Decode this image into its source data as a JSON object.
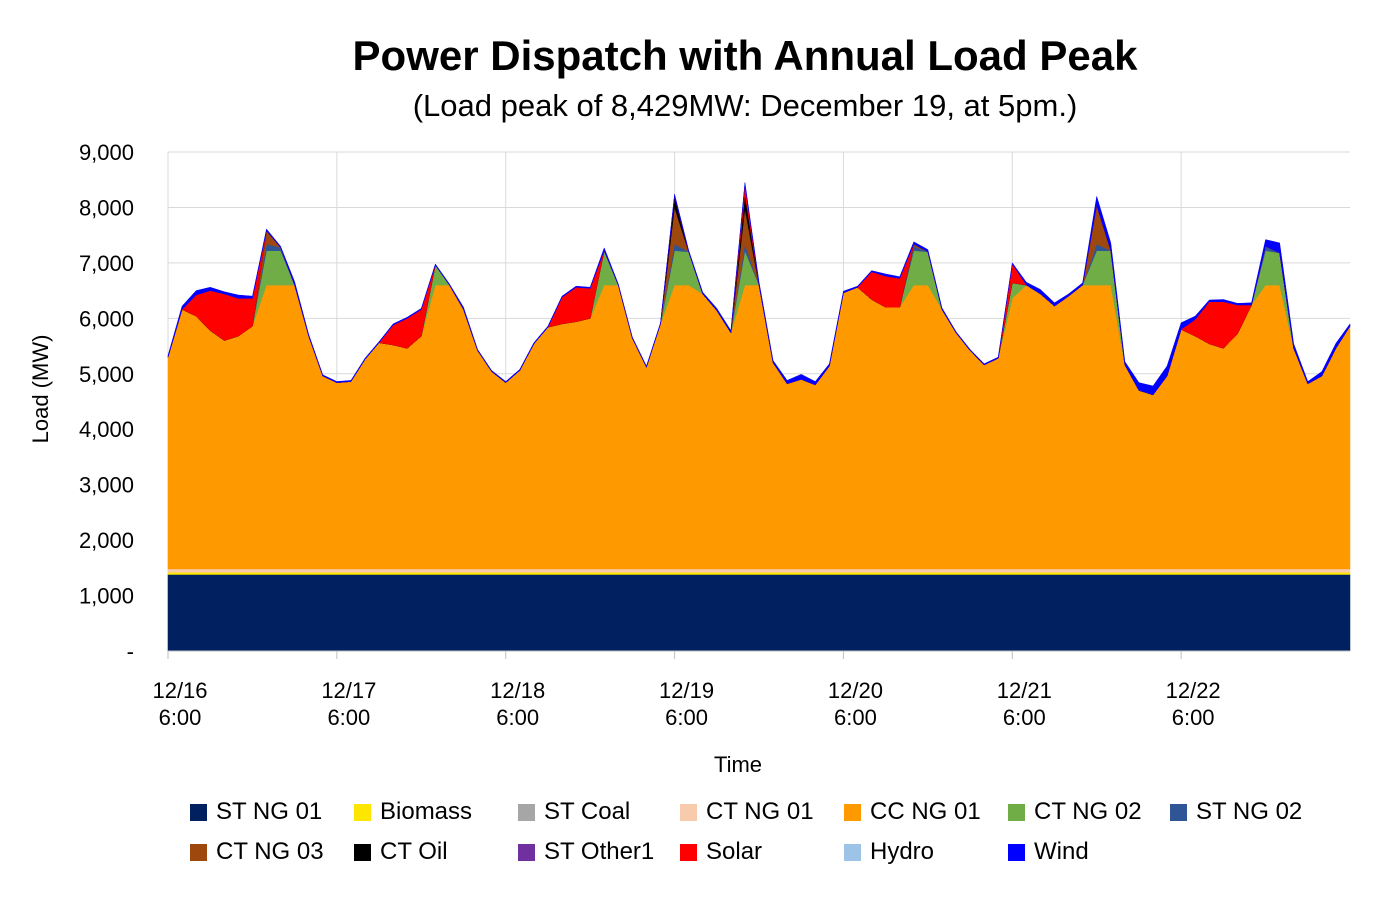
{
  "chart_data": {
    "type": "area",
    "stacked": true,
    "title": "Power Dispatch with Annual Load Peak",
    "subtitle": "(Load peak of 8,429MW: December 19, at 5pm.)",
    "xlabel": "Time",
    "ylabel": "Load (MW)",
    "ylim": [
      0,
      9000
    ],
    "yticks": [
      {
        "value": 0,
        "label": "-"
      },
      {
        "value": 1000,
        "label": "1,000"
      },
      {
        "value": 2000,
        "label": "2,000"
      },
      {
        "value": 3000,
        "label": "3,000"
      },
      {
        "value": 4000,
        "label": "4,000"
      },
      {
        "value": 5000,
        "label": "5,000"
      },
      {
        "value": 6000,
        "label": "6,000"
      },
      {
        "value": 7000,
        "label": "7,000"
      },
      {
        "value": 8000,
        "label": "8,000"
      },
      {
        "value": 9000,
        "label": "9,000"
      }
    ],
    "xtick_labels": [
      {
        "date": "12/16",
        "time": "6:00"
      },
      {
        "date": "12/17",
        "time": "6:00"
      },
      {
        "date": "12/18",
        "time": "6:00"
      },
      {
        "date": "12/19",
        "time": "6:00"
      },
      {
        "date": "12/20",
        "time": "6:00"
      },
      {
        "date": "12/21",
        "time": "6:00"
      },
      {
        "date": "12/22",
        "time": "6:00"
      }
    ],
    "x_hours_from_start": [
      0,
      2,
      4,
      6,
      8,
      10,
      12,
      14,
      16,
      18,
      20,
      22,
      24,
      26,
      28,
      30,
      32,
      34,
      36,
      38,
      40,
      42,
      44,
      46,
      48,
      50,
      52,
      54,
      56,
      58,
      60,
      62,
      64,
      66,
      68,
      70,
      72,
      74,
      76,
      78,
      80,
      82,
      84,
      86,
      88,
      90,
      92,
      94,
      96,
      98,
      100,
      102,
      104,
      106,
      108,
      110,
      112,
      114,
      116,
      118,
      120,
      122,
      124,
      126,
      128,
      130,
      132,
      134,
      136,
      138,
      140,
      142,
      144,
      146,
      148,
      150,
      152,
      154,
      156,
      158,
      160,
      162,
      164,
      166,
      168
    ],
    "grid": true,
    "legend_position": "bottom",
    "series": [
      {
        "name": "ST NG 01",
        "color": "#002060",
        "values": [
          1380,
          1380,
          1380,
          1380,
          1380,
          1380,
          1380,
          1380,
          1380,
          1380,
          1380,
          1380,
          1380,
          1380,
          1380,
          1380,
          1380,
          1380,
          1380,
          1380,
          1380,
          1380,
          1380,
          1380,
          1380,
          1380,
          1380,
          1380,
          1380,
          1380,
          1380,
          1380,
          1380,
          1380,
          1380,
          1380,
          1380,
          1380,
          1380,
          1380,
          1380,
          1380,
          1380,
          1380,
          1380,
          1380,
          1380,
          1380,
          1380,
          1380,
          1380,
          1380,
          1380,
          1380,
          1380,
          1380,
          1380,
          1380,
          1380,
          1380,
          1380,
          1380,
          1380,
          1380,
          1380,
          1380,
          1380,
          1380,
          1380,
          1380,
          1380,
          1380,
          1380,
          1380,
          1380,
          1380,
          1380,
          1380,
          1380,
          1380,
          1380,
          1380,
          1380,
          1380,
          1380
        ]
      },
      {
        "name": "Biomass",
        "color": "#FFE600",
        "values": [
          40,
          40,
          40,
          40,
          40,
          40,
          40,
          40,
          40,
          40,
          40,
          40,
          40,
          40,
          40,
          40,
          40,
          40,
          40,
          40,
          40,
          40,
          40,
          40,
          40,
          40,
          40,
          40,
          40,
          40,
          40,
          40,
          40,
          40,
          40,
          40,
          40,
          40,
          40,
          40,
          40,
          40,
          40,
          40,
          40,
          40,
          40,
          40,
          40,
          40,
          40,
          40,
          40,
          40,
          40,
          40,
          40,
          40,
          40,
          40,
          40,
          40,
          40,
          40,
          40,
          40,
          40,
          40,
          40,
          40,
          40,
          40,
          40,
          40,
          40,
          40,
          40,
          40,
          40,
          40,
          40,
          40,
          40,
          40,
          40
        ]
      },
      {
        "name": "ST Coal",
        "color": "#A6A6A6",
        "values": [
          0,
          0,
          0,
          0,
          0,
          0,
          0,
          0,
          0,
          0,
          0,
          0,
          0,
          0,
          0,
          0,
          0,
          0,
          0,
          0,
          0,
          0,
          0,
          0,
          0,
          0,
          0,
          0,
          0,
          0,
          0,
          0,
          0,
          0,
          0,
          0,
          0,
          0,
          0,
          0,
          0,
          0,
          0,
          0,
          0,
          0,
          0,
          0,
          0,
          0,
          0,
          0,
          0,
          0,
          0,
          0,
          0,
          0,
          0,
          0,
          0,
          0,
          0,
          0,
          0,
          0,
          0,
          0,
          0,
          0,
          0,
          0,
          0,
          0,
          0,
          0,
          0,
          0,
          0,
          0,
          0,
          0,
          0,
          0,
          0
        ]
      },
      {
        "name": "CT NG 01",
        "color": "#F8CBAD",
        "values": [
          60,
          60,
          60,
          60,
          60,
          60,
          60,
          60,
          60,
          60,
          60,
          60,
          60,
          60,
          60,
          60,
          60,
          60,
          60,
          60,
          60,
          60,
          60,
          60,
          60,
          60,
          60,
          60,
          60,
          60,
          60,
          60,
          60,
          60,
          60,
          60,
          60,
          60,
          60,
          60,
          60,
          60,
          60,
          60,
          60,
          60,
          60,
          60,
          60,
          60,
          60,
          60,
          60,
          60,
          60,
          60,
          60,
          60,
          60,
          60,
          60,
          60,
          60,
          60,
          60,
          60,
          60,
          60,
          60,
          60,
          60,
          60,
          60,
          60,
          60,
          60,
          60,
          60,
          60,
          60,
          60,
          60,
          60,
          60,
          60
        ]
      },
      {
        "name": "CC NG 01",
        "color": "#FF9900",
        "values": [
          3820,
          4680,
          4560,
          4300,
          4120,
          4200,
          4380,
          5120,
          5120,
          5120,
          4200,
          3480,
          3360,
          3380,
          3780,
          4080,
          4040,
          3980,
          4200,
          5120,
          5120,
          4680,
          3940,
          3560,
          3360,
          3580,
          4060,
          4360,
          4420,
          4460,
          4520,
          5120,
          5120,
          4160,
          3640,
          4420,
          5120,
          5120,
          4960,
          4660,
          4260,
          5120,
          5120,
          3720,
          3340,
          3420,
          3320,
          3660,
          4980,
          5080,
          4860,
          4720,
          4720,
          5120,
          5120,
          4680,
          4260,
          3940,
          3680,
          3800,
          4880,
          5120,
          4960,
          4740,
          4920,
          5120,
          5120,
          5120,
          3680,
          3220,
          3140,
          3480,
          4320,
          4200,
          4060,
          3980,
          4240,
          4760,
          5120,
          5120,
          3980,
          3340,
          3480,
          3980,
          4380
        ]
      },
      {
        "name": "CT NG 02",
        "color": "#70AD47",
        "values": [
          0,
          0,
          0,
          0,
          0,
          0,
          0,
          620,
          620,
          0,
          0,
          0,
          0,
          0,
          0,
          0,
          0,
          0,
          0,
          360,
          0,
          0,
          0,
          0,
          0,
          0,
          0,
          0,
          0,
          0,
          0,
          620,
          0,
          0,
          0,
          0,
          620,
          600,
          0,
          0,
          0,
          620,
          0,
          0,
          0,
          0,
          0,
          0,
          0,
          0,
          0,
          0,
          0,
          620,
          600,
          0,
          0,
          0,
          0,
          0,
          280,
          0,
          0,
          0,
          0,
          0,
          620,
          620,
          0,
          0,
          0,
          0,
          0,
          0,
          0,
          0,
          0,
          0,
          620,
          580,
          0,
          0,
          0,
          0,
          0
        ]
      },
      {
        "name": "ST NG 02",
        "color": "#2F5597",
        "values": [
          0,
          0,
          0,
          0,
          0,
          0,
          0,
          120,
          60,
          0,
          0,
          0,
          0,
          0,
          0,
          0,
          0,
          0,
          0,
          0,
          0,
          0,
          0,
          0,
          0,
          0,
          0,
          0,
          0,
          0,
          0,
          0,
          0,
          0,
          0,
          0,
          120,
          0,
          0,
          0,
          0,
          120,
          0,
          0,
          0,
          0,
          0,
          0,
          0,
          0,
          0,
          0,
          0,
          80,
          0,
          0,
          0,
          0,
          0,
          0,
          0,
          0,
          0,
          0,
          0,
          0,
          120,
          0,
          0,
          0,
          0,
          0,
          0,
          0,
          0,
          0,
          0,
          0,
          80,
          0,
          0,
          0,
          0,
          0,
          0
        ]
      },
      {
        "name": "CT NG 03",
        "color": "#9E480E",
        "values": [
          0,
          0,
          0,
          0,
          0,
          0,
          0,
          240,
          0,
          0,
          0,
          0,
          0,
          0,
          0,
          0,
          0,
          0,
          0,
          0,
          0,
          0,
          0,
          0,
          0,
          0,
          0,
          0,
          0,
          0,
          0,
          0,
          0,
          0,
          0,
          0,
          660,
          0,
          0,
          0,
          0,
          640,
          0,
          0,
          0,
          0,
          0,
          0,
          0,
          0,
          0,
          0,
          0,
          40,
          0,
          0,
          0,
          0,
          0,
          0,
          0,
          0,
          0,
          0,
          0,
          0,
          700,
          0,
          0,
          0,
          0,
          0,
          0,
          0,
          0,
          0,
          0,
          0,
          0,
          0,
          0,
          0,
          0,
          0,
          0
        ]
      },
      {
        "name": "CT Oil",
        "color": "#000000",
        "values": [
          0,
          0,
          0,
          0,
          0,
          0,
          0,
          0,
          0,
          0,
          0,
          0,
          0,
          0,
          0,
          0,
          0,
          0,
          0,
          0,
          0,
          0,
          0,
          0,
          0,
          0,
          0,
          0,
          0,
          0,
          0,
          0,
          0,
          0,
          0,
          0,
          200,
          0,
          0,
          0,
          0,
          260,
          0,
          0,
          0,
          0,
          0,
          0,
          0,
          0,
          0,
          0,
          0,
          0,
          0,
          0,
          0,
          0,
          0,
          0,
          0,
          0,
          0,
          0,
          0,
          0,
          0,
          0,
          0,
          0,
          0,
          0,
          0,
          0,
          0,
          0,
          0,
          0,
          0,
          0,
          0,
          0,
          0,
          0,
          0
        ]
      },
      {
        "name": "ST Other1",
        "color": "#7030A0",
        "values": [
          0,
          0,
          0,
          0,
          0,
          0,
          0,
          0,
          0,
          0,
          0,
          0,
          0,
          0,
          0,
          0,
          0,
          0,
          0,
          0,
          0,
          0,
          0,
          0,
          0,
          0,
          0,
          0,
          0,
          0,
          0,
          0,
          0,
          0,
          0,
          0,
          0,
          0,
          0,
          0,
          0,
          0,
          0,
          0,
          0,
          0,
          0,
          0,
          0,
          0,
          0,
          0,
          0,
          0,
          0,
          0,
          0,
          0,
          0,
          0,
          0,
          0,
          0,
          0,
          0,
          0,
          0,
          0,
          0,
          0,
          0,
          0,
          0,
          0,
          0,
          0,
          0,
          0,
          0,
          0,
          0,
          0,
          0,
          0,
          0
        ]
      },
      {
        "name": "Solar",
        "color": "#FF0000",
        "values": [
          0,
          0,
          380,
          720,
          840,
          680,
          500,
          0,
          0,
          0,
          0,
          0,
          0,
          0,
          0,
          0,
          360,
          540,
          480,
          0,
          0,
          0,
          0,
          0,
          0,
          0,
          0,
          0,
          480,
          620,
          540,
          0,
          0,
          0,
          0,
          0,
          0,
          0,
          0,
          0,
          0,
          180,
          0,
          0,
          0,
          0,
          0,
          0,
          0,
          0,
          500,
          560,
          520,
          0,
          0,
          0,
          0,
          0,
          0,
          0,
          340,
          0,
          0,
          0,
          0,
          0,
          0,
          0,
          0,
          0,
          0,
          0,
          0,
          300,
          760,
          840,
          520,
          0,
          0,
          0,
          0,
          0,
          0,
          0,
          0
        ]
      },
      {
        "name": "Hydro",
        "color": "#9DC3E6",
        "values": [
          0,
          0,
          0,
          0,
          0,
          0,
          0,
          0,
          0,
          0,
          0,
          0,
          0,
          0,
          0,
          0,
          0,
          0,
          0,
          0,
          0,
          0,
          0,
          0,
          0,
          0,
          0,
          0,
          0,
          0,
          0,
          0,
          0,
          0,
          0,
          0,
          0,
          0,
          0,
          0,
          0,
          0,
          0,
          0,
          0,
          0,
          0,
          0,
          0,
          0,
          0,
          0,
          0,
          0,
          0,
          0,
          0,
          0,
          0,
          0,
          0,
          0,
          0,
          0,
          0,
          0,
          0,
          0,
          0,
          0,
          0,
          0,
          0,
          0,
          0,
          0,
          0,
          0,
          0,
          0,
          0,
          0,
          0,
          0,
          0
        ]
      },
      {
        "name": "Wind",
        "color": "#0000FF",
        "values": [
          30,
          60,
          80,
          60,
          40,
          60,
          40,
          30,
          20,
          60,
          30,
          20,
          20,
          20,
          20,
          20,
          20,
          20,
          20,
          20,
          20,
          40,
          20,
          20,
          20,
          20,
          20,
          20,
          20,
          20,
          20,
          50,
          20,
          20,
          20,
          20,
          40,
          30,
          30,
          40,
          40,
          30,
          60,
          40,
          60,
          90,
          60,
          40,
          30,
          20,
          20,
          40,
          30,
          40,
          40,
          30,
          20,
          20,
          20,
          20,
          20,
          50,
          80,
          60,
          40,
          40,
          160,
          140,
          60,
          140,
          160,
          180,
          120,
          60,
          30,
          40,
          30,
          40,
          120,
          180,
          80,
          40,
          80,
          90,
          40
        ]
      }
    ]
  },
  "legend": {
    "items": [
      {
        "label": "ST NG 01",
        "color": "#002060"
      },
      {
        "label": "Biomass",
        "color": "#FFE600"
      },
      {
        "label": "ST Coal",
        "color": "#A6A6A6"
      },
      {
        "label": "CT NG 01",
        "color": "#F8CBAD"
      },
      {
        "label": "CC NG 01",
        "color": "#FF9900"
      },
      {
        "label": "CT NG 02",
        "color": "#70AD47"
      },
      {
        "label": "ST NG 02",
        "color": "#2F5597"
      },
      {
        "label": "CT NG 03",
        "color": "#9E480E"
      },
      {
        "label": "CT Oil",
        "color": "#000000"
      },
      {
        "label": "ST Other1",
        "color": "#7030A0"
      },
      {
        "label": "Solar",
        "color": "#FF0000"
      },
      {
        "label": "Hydro",
        "color": "#9DC3E6"
      },
      {
        "label": "Wind",
        "color": "#0000FF"
      }
    ]
  }
}
